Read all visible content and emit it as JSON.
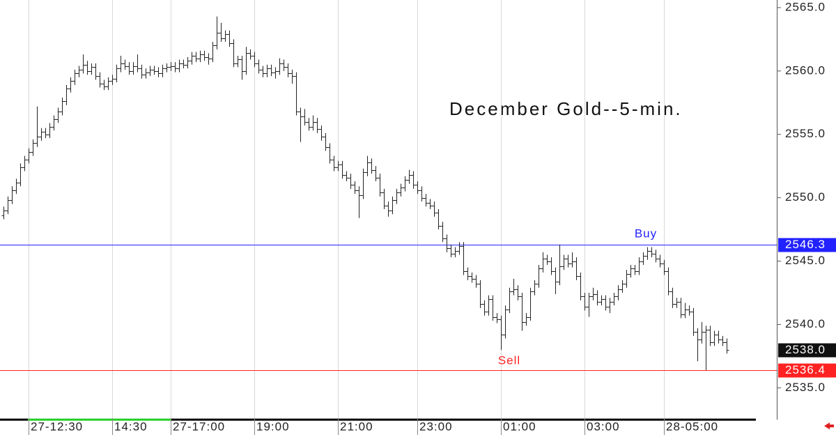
{
  "chart_data": {
    "type": "ohlc",
    "title": "December Gold--5-min.",
    "color": "#222222",
    "categories": [
      null,
      null,
      null,
      null,
      null,
      null,
      "27-12:30",
      null,
      null,
      null,
      null,
      null,
      null,
      null,
      null,
      null,
      null,
      null,
      null,
      null,
      null,
      null,
      null,
      null,
      null,
      null,
      "14:30",
      null,
      null,
      null,
      null,
      null,
      null,
      null,
      null,
      null,
      null,
      null,
      null,
      null,
      "27-17:00",
      null,
      null,
      null,
      null,
      null,
      null,
      null,
      null,
      null,
      null,
      null,
      null,
      null,
      null,
      null,
      null,
      null,
      null,
      null,
      "19:00",
      null,
      null,
      null,
      null,
      null,
      null,
      null,
      null,
      null,
      null,
      null,
      null,
      null,
      null,
      null,
      null,
      null,
      null,
      null,
      "21:00",
      null,
      null,
      null,
      null,
      null,
      null,
      null,
      null,
      null,
      null,
      null,
      null,
      null,
      null,
      null,
      null,
      null,
      null,
      "23:00",
      null,
      null,
      null,
      null,
      null,
      null,
      null,
      null,
      null,
      null,
      null,
      null,
      null,
      null,
      null,
      null,
      null,
      null,
      null,
      "01:00",
      null,
      null,
      null,
      null,
      null,
      null,
      null,
      null,
      null,
      null,
      null,
      null,
      null,
      null,
      null,
      null,
      null,
      null,
      null,
      "03:00",
      null,
      null,
      null,
      null,
      null,
      null,
      null,
      null,
      null,
      null,
      null,
      null,
      null,
      null,
      null,
      null,
      null,
      null,
      "28-05:00",
      null,
      null,
      null,
      null,
      null,
      null,
      null,
      null,
      null,
      null,
      null,
      null,
      null,
      null,
      null
    ],
    "open": [
      2548.6,
      2549.0,
      2549.8,
      2550.6,
      2551.2,
      2552.4,
      2553.0,
      2553.6,
      2554.3,
      2554.8,
      2555.2,
      2555.0,
      2555.6,
      2556.2,
      2556.8,
      2557.6,
      2558.6,
      2559.2,
      2559.8,
      2560.1,
      2560.5,
      2560.0,
      2560.3,
      2559.6,
      2559.0,
      2558.8,
      2559.2,
      2559.4,
      2560.2,
      2560.6,
      2560.4,
      2560.0,
      2560.4,
      2560.2,
      2559.7,
      2559.9,
      2560.1,
      2560.0,
      2559.8,
      2560.2,
      2560.3,
      2560.4,
      2560.2,
      2560.6,
      2560.5,
      2560.8,
      2561.2,
      2561.0,
      2561.3,
      2561.1,
      2561.0,
      2562.0,
      2563.0,
      2562.6,
      2562.9,
      2562.2,
      2560.6,
      2560.9,
      2560.0,
      2561.4,
      2561.2,
      2560.6,
      2560.1,
      2559.8,
      2560.2,
      2559.9,
      2560.0,
      2560.6,
      2560.3,
      2559.8,
      2559.6,
      2556.8,
      2556.4,
      2556.0,
      2555.6,
      2556.0,
      2555.4,
      2554.8,
      2554.0,
      2553.0,
      2552.4,
      2552.6,
      2551.8,
      2551.6,
      2551.0,
      2550.6,
      2550.2,
      2552.0,
      2552.8,
      2552.2,
      2551.6,
      2550.4,
      2549.4,
      2549.0,
      2549.8,
      2550.4,
      2550.8,
      2551.4,
      2551.8,
      2551.0,
      2550.6,
      2550.0,
      2549.6,
      2549.4,
      2548.8,
      2547.8,
      2546.8,
      2546.0,
      2545.6,
      2545.8,
      2546.2,
      2544.2,
      2543.8,
      2543.6,
      2543.2,
      2541.6,
      2541.0,
      2542.0,
      2540.6,
      2540.4,
      2539.2,
      2541.2,
      2542.6,
      2542.8,
      2542.2,
      2540.2,
      2540.6,
      2542.6,
      2543.2,
      2544.4,
      2545.2,
      2545.0,
      2544.2,
      2543.4,
      2544.6,
      2545.2,
      2544.8,
      2545.0,
      2543.8,
      2542.2,
      2541.4,
      2542.2,
      2542.4,
      2541.8,
      2542.0,
      2541.4,
      2541.8,
      2542.2,
      2542.8,
      2543.2,
      2544.0,
      2544.4,
      2544.2,
      2545.0,
      2545.4,
      2545.8,
      2545.6,
      2545.2,
      2544.8,
      2544.2,
      2542.6,
      2541.6,
      2541.8,
      2540.8,
      2541.2,
      2541.0,
      2539.4,
      2538.8,
      2539.4,
      2539.6,
      2538.6,
      2539.2,
      2538.8,
      2538.6
    ],
    "high": [
      2549.3,
      2550.1,
      2550.9,
      2551.5,
      2552.7,
      2553.3,
      2553.9,
      2554.6,
      2557.2,
      2555.5,
      2555.5,
      2555.9,
      2556.5,
      2557.1,
      2557.9,
      2558.9,
      2559.5,
      2560.1,
      2560.4,
      2561.3,
      2560.8,
      2560.6,
      2560.6,
      2559.9,
      2559.3,
      2559.5,
      2559.7,
      2560.5,
      2561.2,
      2560.9,
      2560.7,
      2560.7,
      2561.3,
      2560.5,
      2560.2,
      2560.4,
      2560.4,
      2560.3,
      2560.5,
      2560.6,
      2560.7,
      2560.7,
      2560.9,
      2560.9,
      2561.1,
      2561.5,
      2561.5,
      2561.6,
      2561.6,
      2561.4,
      2562.3,
      2564.3,
      2563.8,
      2563.2,
      2563.2,
      2562.5,
      2561.2,
      2561.2,
      2561.9,
      2561.7,
      2561.5,
      2560.9,
      2560.4,
      2560.5,
      2560.5,
      2560.3,
      2561.0,
      2560.9,
      2560.6,
      2560.1,
      2559.9,
      2557.1,
      2557.0,
      2556.3,
      2556.5,
      2556.3,
      2555.7,
      2555.1,
      2554.3,
      2553.3,
      2552.9,
      2552.9,
      2552.1,
      2551.9,
      2551.3,
      2550.9,
      2552.3,
      2553.3,
      2553.1,
      2552.5,
      2551.9,
      2550.7,
      2549.7,
      2550.1,
      2550.7,
      2551.1,
      2551.7,
      2552.2,
      2552.1,
      2551.3,
      2550.9,
      2550.3,
      2549.9,
      2549.7,
      2549.1,
      2548.1,
      2547.1,
      2546.3,
      2546.1,
      2546.5,
      2546.5,
      2544.5,
      2544.1,
      2543.9,
      2543.5,
      2541.9,
      2542.3,
      2542.3,
      2540.9,
      2540.7,
      2541.5,
      2542.9,
      2543.6,
      2543.1,
      2542.5,
      2540.9,
      2542.9,
      2543.5,
      2544.7,
      2545.7,
      2545.5,
      2545.3,
      2544.5,
      2546.3,
      2545.5,
      2545.5,
      2545.7,
      2545.3,
      2544.1,
      2542.5,
      2542.5,
      2542.9,
      2542.7,
      2542.3,
      2542.3,
      2542.1,
      2542.5,
      2543.1,
      2543.5,
      2544.3,
      2544.7,
      2544.7,
      2545.3,
      2545.7,
      2546.1,
      2546.1,
      2545.9,
      2545.5,
      2545.1,
      2544.5,
      2542.9,
      2542.1,
      2542.1,
      2541.7,
      2541.5,
      2541.3,
      2539.7,
      2540.2,
      2539.9,
      2539.9,
      2539.5,
      2539.5,
      2539.1,
      2538.9
    ],
    "low": [
      2548.3,
      2548.7,
      2549.5,
      2550.3,
      2550.9,
      2552.1,
      2552.7,
      2553.3,
      2554.0,
      2554.5,
      2554.7,
      2554.7,
      2555.3,
      2555.9,
      2556.5,
      2557.3,
      2558.3,
      2558.9,
      2559.5,
      2559.8,
      2559.7,
      2559.7,
      2559.3,
      2558.7,
      2558.5,
      2558.5,
      2558.9,
      2559.1,
      2559.9,
      2560.1,
      2559.7,
      2559.7,
      2559.9,
      2559.4,
      2559.4,
      2559.6,
      2559.7,
      2559.5,
      2559.5,
      2559.9,
      2560.0,
      2559.9,
      2559.9,
      2560.2,
      2560.2,
      2560.5,
      2560.7,
      2560.7,
      2560.8,
      2560.5,
      2560.7,
      2561.7,
      2562.3,
      2562.3,
      2561.9,
      2560.3,
      2560.3,
      2559.3,
      2559.7,
      2560.9,
      2560.3,
      2559.8,
      2559.5,
      2559.5,
      2559.6,
      2559.4,
      2559.7,
      2560.0,
      2559.5,
      2559.0,
      2556.5,
      2554.4,
      2555.7,
      2555.3,
      2555.3,
      2555.1,
      2554.5,
      2553.7,
      2552.7,
      2552.1,
      2552.1,
      2551.5,
      2551.3,
      2550.7,
      2550.3,
      2548.4,
      2549.9,
      2551.7,
      2551.9,
      2551.3,
      2550.1,
      2549.1,
      2548.5,
      2548.7,
      2549.5,
      2550.1,
      2550.5,
      2551.1,
      2550.7,
      2550.3,
      2549.7,
      2549.3,
      2549.1,
      2548.5,
      2547.5,
      2546.5,
      2545.7,
      2545.3,
      2545.3,
      2545.5,
      2543.9,
      2543.5,
      2543.3,
      2542.9,
      2541.3,
      2540.7,
      2540.7,
      2540.3,
      2540.1,
      2538.0,
      2538.9,
      2540.9,
      2542.3,
      2541.9,
      2539.5,
      2539.9,
      2540.3,
      2542.3,
      2542.9,
      2544.1,
      2544.7,
      2543.9,
      2542.4,
      2543.1,
      2544.3,
      2544.5,
      2544.5,
      2543.5,
      2541.9,
      2541.1,
      2540.6,
      2541.9,
      2541.5,
      2541.5,
      2541.1,
      2540.9,
      2541.5,
      2541.9,
      2542.5,
      2542.9,
      2543.7,
      2543.9,
      2543.9,
      2544.7,
      2545.1,
      2545.3,
      2544.9,
      2544.5,
      2543.9,
      2542.3,
      2541.3,
      2541.3,
      2540.5,
      2540.5,
      2540.7,
      2539.1,
      2537.1,
      2538.5,
      2536.4,
      2538.3,
      2538.3,
      2538.5,
      2538.3,
      2537.7
    ],
    "close": [
      2549.0,
      2549.8,
      2550.6,
      2551.2,
      2552.4,
      2553.0,
      2553.6,
      2554.3,
      2554.8,
      2555.2,
      2555.0,
      2555.6,
      2556.2,
      2556.8,
      2557.6,
      2558.6,
      2559.2,
      2559.8,
      2560.1,
      2560.5,
      2560.0,
      2560.3,
      2559.6,
      2559.0,
      2558.8,
      2559.2,
      2559.4,
      2560.2,
      2560.6,
      2560.4,
      2560.0,
      2560.4,
      2560.2,
      2559.7,
      2559.9,
      2560.1,
      2560.0,
      2559.8,
      2560.2,
      2560.3,
      2560.4,
      2560.2,
      2560.6,
      2560.5,
      2560.8,
      2561.2,
      2561.0,
      2561.3,
      2561.1,
      2561.0,
      2562.0,
      2563.0,
      2562.6,
      2562.9,
      2562.2,
      2560.6,
      2560.9,
      2560.0,
      2561.4,
      2561.2,
      2560.6,
      2560.1,
      2559.8,
      2560.2,
      2559.9,
      2560.0,
      2560.6,
      2560.3,
      2559.8,
      2559.6,
      2556.8,
      2556.4,
      2556.0,
      2555.6,
      2556.0,
      2555.4,
      2554.8,
      2554.0,
      2553.0,
      2552.4,
      2552.6,
      2551.8,
      2551.6,
      2551.0,
      2550.6,
      2550.2,
      2552.0,
      2552.8,
      2552.2,
      2551.6,
      2550.4,
      2549.4,
      2549.0,
      2549.8,
      2550.4,
      2550.8,
      2551.4,
      2551.8,
      2551.0,
      2550.6,
      2550.0,
      2549.6,
      2549.4,
      2548.8,
      2547.8,
      2546.8,
      2546.0,
      2545.6,
      2545.8,
      2546.2,
      2544.2,
      2543.8,
      2543.6,
      2543.2,
      2541.6,
      2541.0,
      2542.0,
      2540.6,
      2540.4,
      2539.2,
      2541.2,
      2542.6,
      2542.8,
      2542.2,
      2540.2,
      2540.6,
      2542.6,
      2543.2,
      2544.4,
      2545.2,
      2545.0,
      2544.2,
      2543.4,
      2544.6,
      2545.2,
      2544.8,
      2545.0,
      2543.8,
      2542.2,
      2541.4,
      2542.2,
      2542.4,
      2541.8,
      2542.0,
      2541.4,
      2541.8,
      2542.2,
      2542.8,
      2543.2,
      2544.0,
      2544.4,
      2544.2,
      2545.0,
      2545.4,
      2545.8,
      2545.6,
      2545.2,
      2544.8,
      2544.2,
      2542.6,
      2541.6,
      2541.8,
      2540.8,
      2541.2,
      2541.0,
      2539.4,
      2538.8,
      2539.4,
      2539.6,
      2538.6,
      2539.2,
      2538.8,
      2538.6,
      2538.0
    ],
    "last_price_label": "2538.0",
    "levels": [
      {
        "label": "Buy",
        "value": 2546.3,
        "value_label": "2546.3",
        "color": "#2222ff"
      },
      {
        "label": "Sell",
        "value": 2536.4,
        "value_label": "2536.4",
        "color": "#ff2222"
      }
    ],
    "ylim": [
      2532.6,
      2565.6
    ],
    "yticks": [
      {
        "value": 2535,
        "label": "2535.0"
      },
      {
        "value": 2540,
        "label": "2540.0"
      },
      {
        "value": 2545,
        "label": "2545.0"
      },
      {
        "value": 2550,
        "label": "2550.0"
      },
      {
        "value": 2555,
        "label": "2555.0"
      },
      {
        "value": 2560,
        "label": "2560.0"
      },
      {
        "value": 2565,
        "label": "2565.0"
      }
    ]
  }
}
